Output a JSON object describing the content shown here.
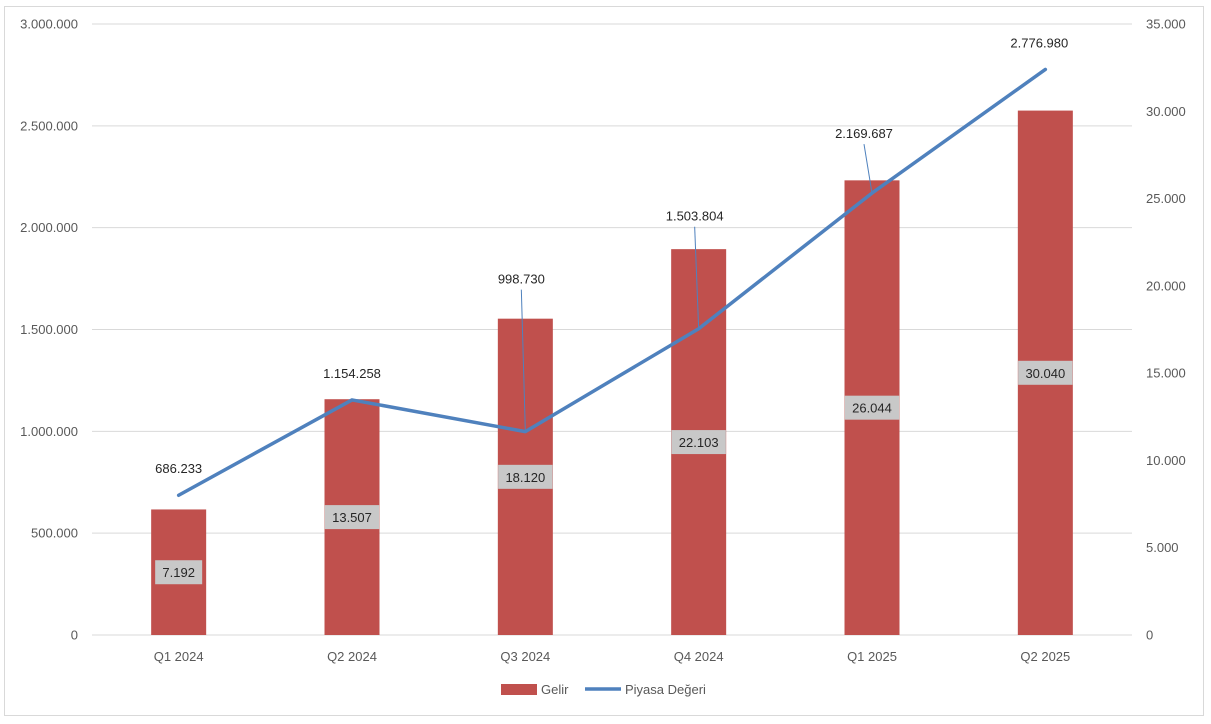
{
  "chart_data": {
    "type": "bar",
    "categories": [
      "Q1 2024",
      "Q2 2024",
      "Q3 2024",
      "Q4 2024",
      "Q1 2025",
      "Q2 2025"
    ],
    "series": [
      {
        "name": "Gelir",
        "type": "bar",
        "axis": "right",
        "color": "#C0504D",
        "values": [
          7192,
          13507,
          18120,
          22103,
          26044,
          30040
        ],
        "labels": [
          "7.192",
          "13.507",
          "18.120",
          "22.103",
          "26.044",
          "30.040"
        ]
      },
      {
        "name": "Piyasa Değeri",
        "type": "line",
        "axis": "left",
        "color": "#4F81BD",
        "values": [
          686233,
          1154258,
          998730,
          1503804,
          2169687,
          2776980
        ],
        "labels": [
          "686.233",
          "1.154.258",
          "998.730",
          "1.503.804",
          "2.169.687",
          "2.776.980"
        ]
      }
    ],
    "y_left": {
      "range": [
        0,
        3000000
      ],
      "ticks": [
        0,
        500000,
        1000000,
        1500000,
        2000000,
        2500000,
        3000000
      ],
      "tick_labels": [
        "0",
        "500.000",
        "1.000.000",
        "1.500.000",
        "2.000.000",
        "2.500.000",
        "3.000.000"
      ]
    },
    "y_right": {
      "range": [
        0,
        35000
      ],
      "ticks": [
        0,
        5000,
        10000,
        15000,
        20000,
        25000,
        30000,
        35000
      ],
      "tick_labels": [
        "0",
        "5.000",
        "10.000",
        "15.000",
        "20.000",
        "25.000",
        "30.000",
        "35.000"
      ]
    },
    "grid": true,
    "legend_position": "bottom",
    "title": "",
    "xlabel": "",
    "ylabel": ""
  }
}
